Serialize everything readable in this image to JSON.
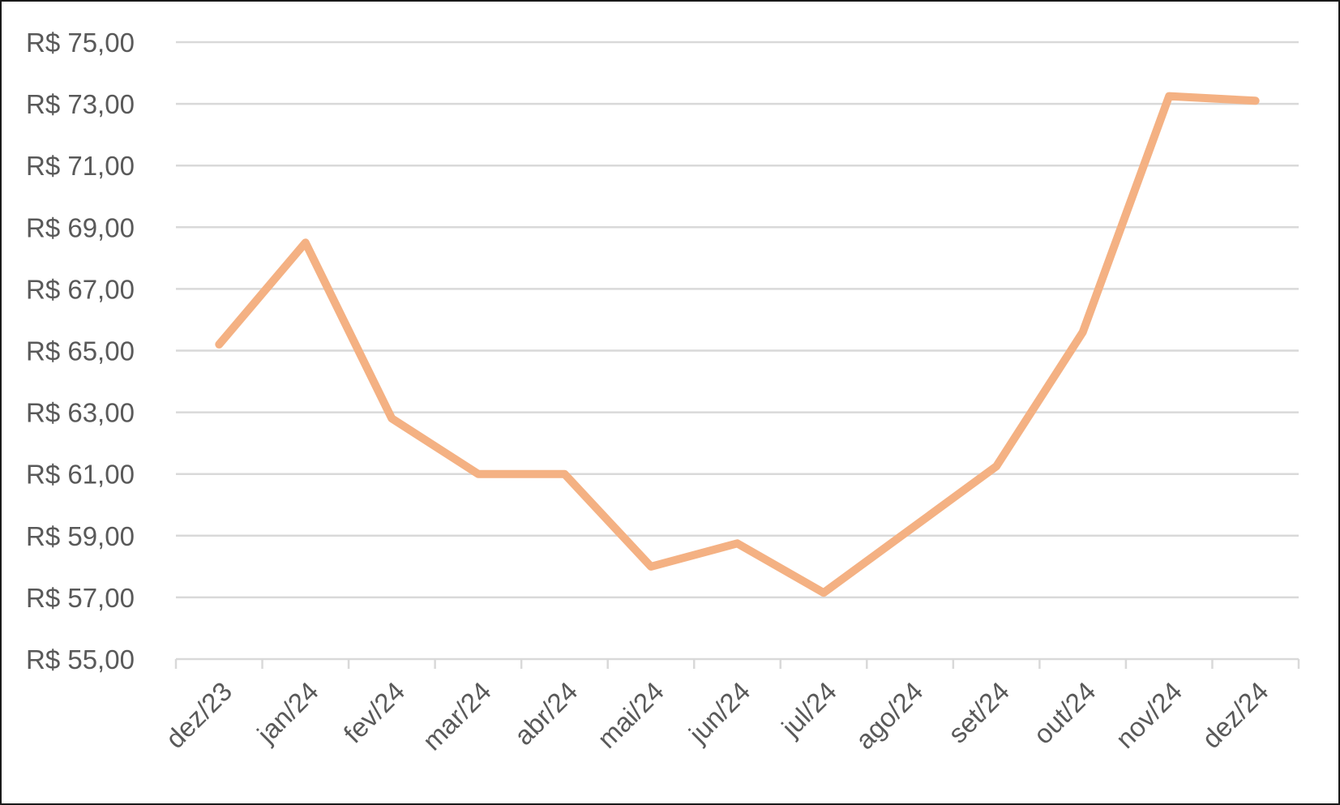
{
  "chart_data": {
    "type": "line",
    "title": "",
    "xlabel": "",
    "ylabel": "",
    "categories": [
      "dez/23",
      "jan/24",
      "fev/24",
      "mar/24",
      "abr/24",
      "mai/24",
      "jun/24",
      "jul/24",
      "ago/24",
      "set/24",
      "out/24",
      "nov/24",
      "dez/24"
    ],
    "y_ticks": [
      "R$ 55,00",
      "R$ 57,00",
      "R$ 59,00",
      "R$ 61,00",
      "R$ 63,00",
      "R$ 65,00",
      "R$ 67,00",
      "R$ 69,00",
      "R$ 71,00",
      "R$ 73,00",
      "R$ 75,00"
    ],
    "ylim": [
      55,
      75
    ],
    "ytick_step": 2,
    "grid": "horizontal",
    "legend": "none",
    "series": [
      {
        "values": [
          65.2,
          68.5,
          62.8,
          61.0,
          61.0,
          58.0,
          58.75,
          57.15,
          59.2,
          61.25,
          65.6,
          73.25,
          73.1
        ]
      }
    ],
    "colors": {
      "line": "#F4B183",
      "grid": "#d9d9d9",
      "axis": "#d9d9d9",
      "text": "#595959"
    }
  }
}
